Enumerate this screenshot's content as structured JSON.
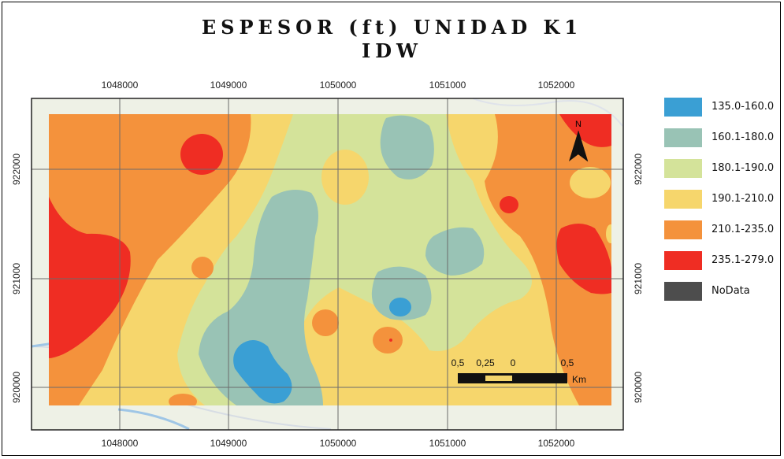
{
  "title": {
    "line1": "ESPESOR (ft) UNIDAD K1",
    "line2": "IDW"
  },
  "axes": {
    "x_ticks": [
      "1048000",
      "1049000",
      "1050000",
      "1051000",
      "1052000"
    ],
    "y_ticks": [
      "922000",
      "921000",
      "920000"
    ]
  },
  "legend": [
    {
      "label": "135.0-160.0",
      "color": "#3a9fd4"
    },
    {
      "label": "160.1-180.0",
      "color": "#99c3b5"
    },
    {
      "label": "180.1-190.0",
      "color": "#d4e39a"
    },
    {
      "label": "190.1-210.0",
      "color": "#f6d66c"
    },
    {
      "label": "210.1-235.0",
      "color": "#f4923c"
    },
    {
      "label": "235.1-279.0",
      "color": "#ef2d23"
    },
    {
      "label": "NoData",
      "color": "#4d4d4d"
    }
  ],
  "north_arrow": {
    "label": "N",
    "icon": "north-arrow-icon"
  },
  "scale_bar": {
    "labels": [
      "0,5",
      "0,25",
      "0",
      "0,5"
    ],
    "unit": "Km"
  }
}
